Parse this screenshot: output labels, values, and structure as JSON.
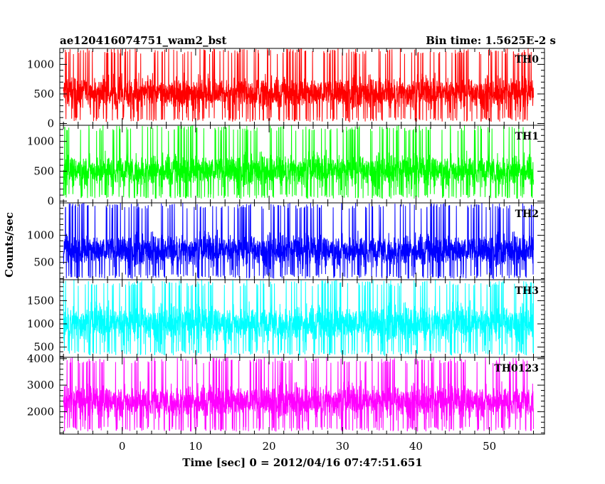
{
  "chart_data": {
    "type": "line",
    "title": "ae120416074751_wam2_bst",
    "subtitle": "Bin time: 1.5625E-2 s",
    "xlabel": "Time [sec] 0 = 2012/04/16 07:47:51.651",
    "ylabel": "Counts/sec",
    "xlim": [
      -8.5,
      57.5
    ],
    "x_range_data": [
      -8.0,
      56.0
    ],
    "bin_time": 0.015625,
    "x_ticks": [
      0,
      10,
      20,
      30,
      40,
      50
    ],
    "grid": false,
    "panels": [
      {
        "name": "TH0",
        "color": "#ff0000",
        "ylim": [
          -30,
          1270
        ],
        "y_ticks": [
          0,
          500,
          1000
        ],
        "mean": 520,
        "spread": 390,
        "min_value": 30,
        "max_value": 1270
      },
      {
        "name": "TH1",
        "color": "#00ff00",
        "ylim": [
          -30,
          1270
        ],
        "y_ticks": [
          0,
          500,
          1000
        ],
        "mean": 520,
        "spread": 390,
        "min_value": 40,
        "max_value": 1270
      },
      {
        "name": "TH2",
        "color": "#0000ff",
        "ylim": [
          180,
          1600
        ],
        "y_ticks": [
          500,
          1000
        ],
        "mean": 730,
        "spread": 430,
        "min_value": 200,
        "max_value": 1600
      },
      {
        "name": "TH3",
        "color": "#00ffff",
        "ylim": [
          280,
          1950
        ],
        "y_ticks": [
          500,
          1000,
          1500
        ],
        "mean": 1020,
        "spread": 560,
        "min_value": 320,
        "max_value": 1950
      },
      {
        "name": "TH0123",
        "color": "#ff00ff",
        "ylim": [
          1150,
          4050
        ],
        "y_ticks": [
          2000,
          3000,
          4000
        ],
        "mean": 2400,
        "spread": 900,
        "min_value": 1250,
        "max_value": 4050
      }
    ]
  }
}
